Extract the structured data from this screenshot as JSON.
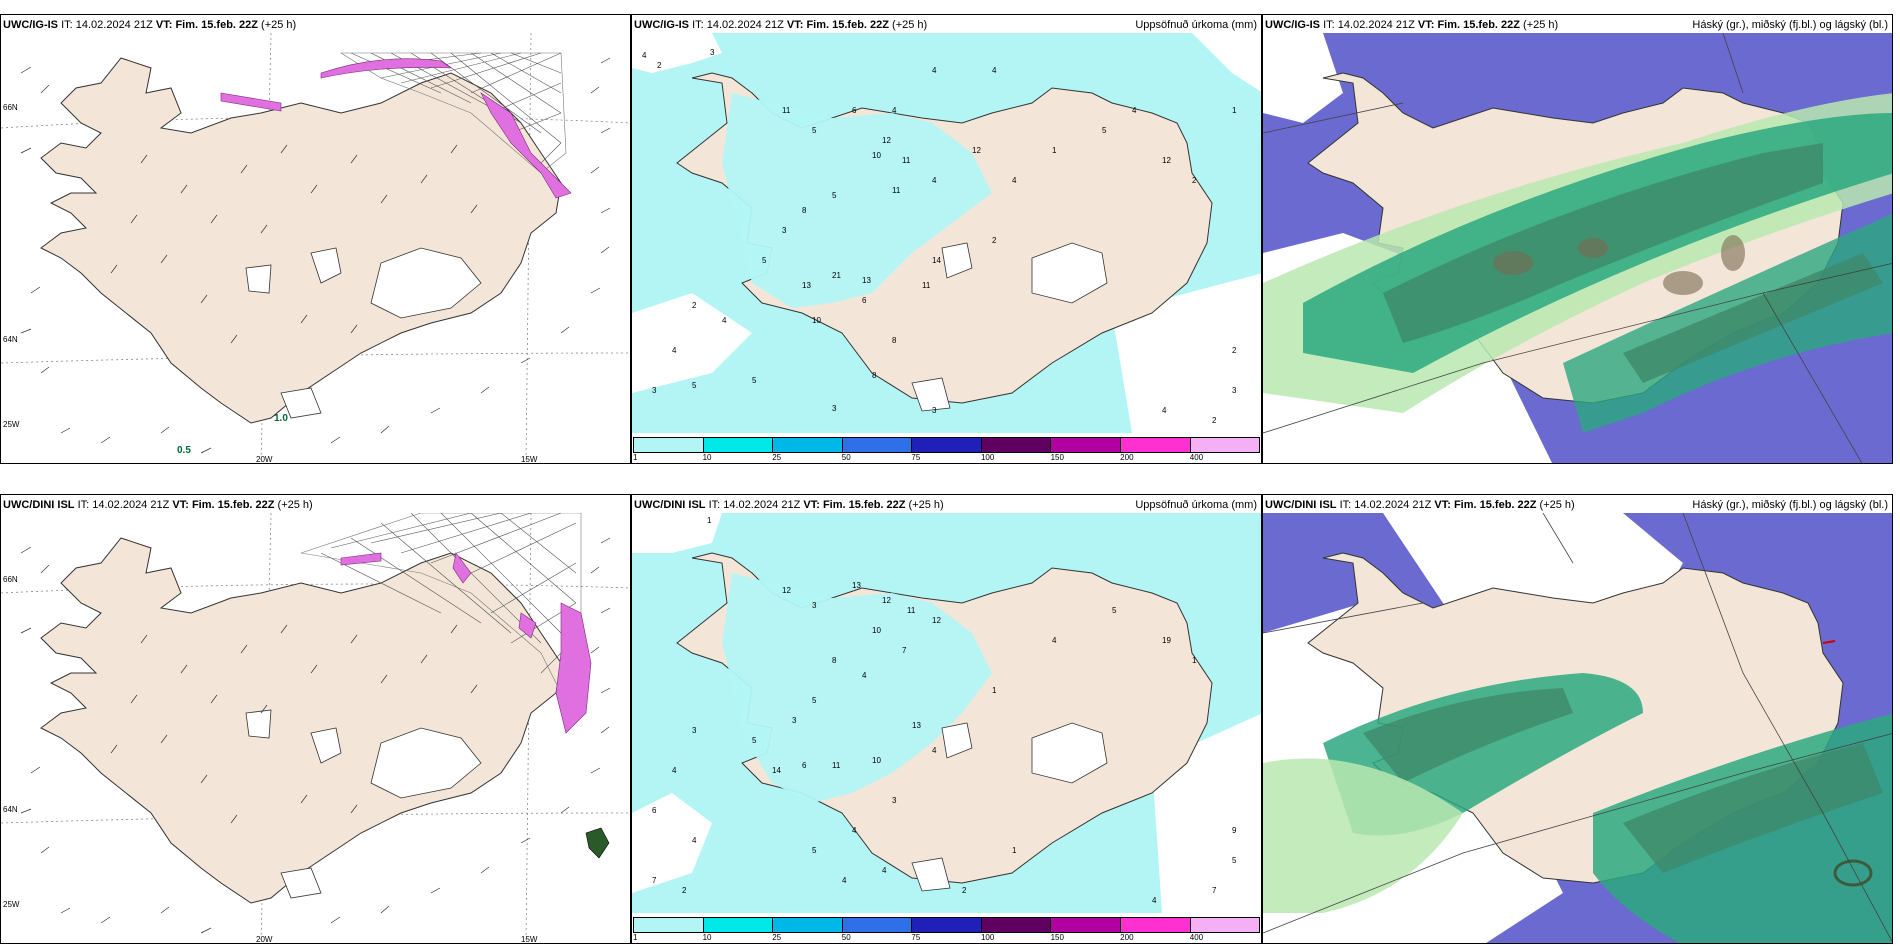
{
  "rows": [
    {
      "model": "UWC/IG-IS",
      "it_label": "IT:",
      "it_value": "14.02.2024 21Z",
      "vt_label": "VT: Fim. 15.feb. 22Z",
      "lead": "(+25 h)",
      "panels": {
        "wind": {
          "annotation1": "0.5",
          "annotation2": "1.0",
          "lat_labels": [
            "66N",
            "64N",
            "25W"
          ],
          "lon_labels": [
            "20W",
            "15W"
          ]
        },
        "precip": {
          "title": "Uppsöfnuð úrkoma (mm)"
        },
        "cloud": {
          "title": "Háský (gr.), miðský (fj.bl.) og lágský (bl.)"
        }
      }
    },
    {
      "model": "UWC/DINI ISL",
      "it_label": "IT:",
      "it_value": "14.02.2024 21Z",
      "vt_label": "VT: Fim. 15.feb. 22Z",
      "lead": "(+25 h)",
      "panels": {
        "wind": {
          "annotation1": "",
          "annotation2": "",
          "lat_labels": [
            "66N",
            "64N",
            "25W"
          ],
          "lon_labels": [
            "20W",
            "15W"
          ]
        },
        "precip": {
          "title": "Uppsöfnuð úrkoma (mm)"
        },
        "cloud": {
          "title": "Háský (gr.), miðský (fj.bl.) og lágský (bl.)"
        }
      }
    }
  ],
  "legend": {
    "ticks": [
      "1",
      "10",
      "25",
      "50",
      "75",
      "100",
      "150",
      "200",
      "400"
    ],
    "colors": [
      "#b3f5f5",
      "#00e8e8",
      "#00b8e8",
      "#2f6fe8",
      "#2020b8",
      "#600060",
      "#b000a0",
      "#ff30d0",
      "#f5b0f5"
    ]
  },
  "colors": {
    "land": "#f3e6d8",
    "precip_light": "#b3f5f5",
    "precip_med": "#8ef0f0",
    "cloud_high": "#6a6ad0",
    "cloud_mid": "#2ca880",
    "cloud_low": "#b8e8b0"
  }
}
